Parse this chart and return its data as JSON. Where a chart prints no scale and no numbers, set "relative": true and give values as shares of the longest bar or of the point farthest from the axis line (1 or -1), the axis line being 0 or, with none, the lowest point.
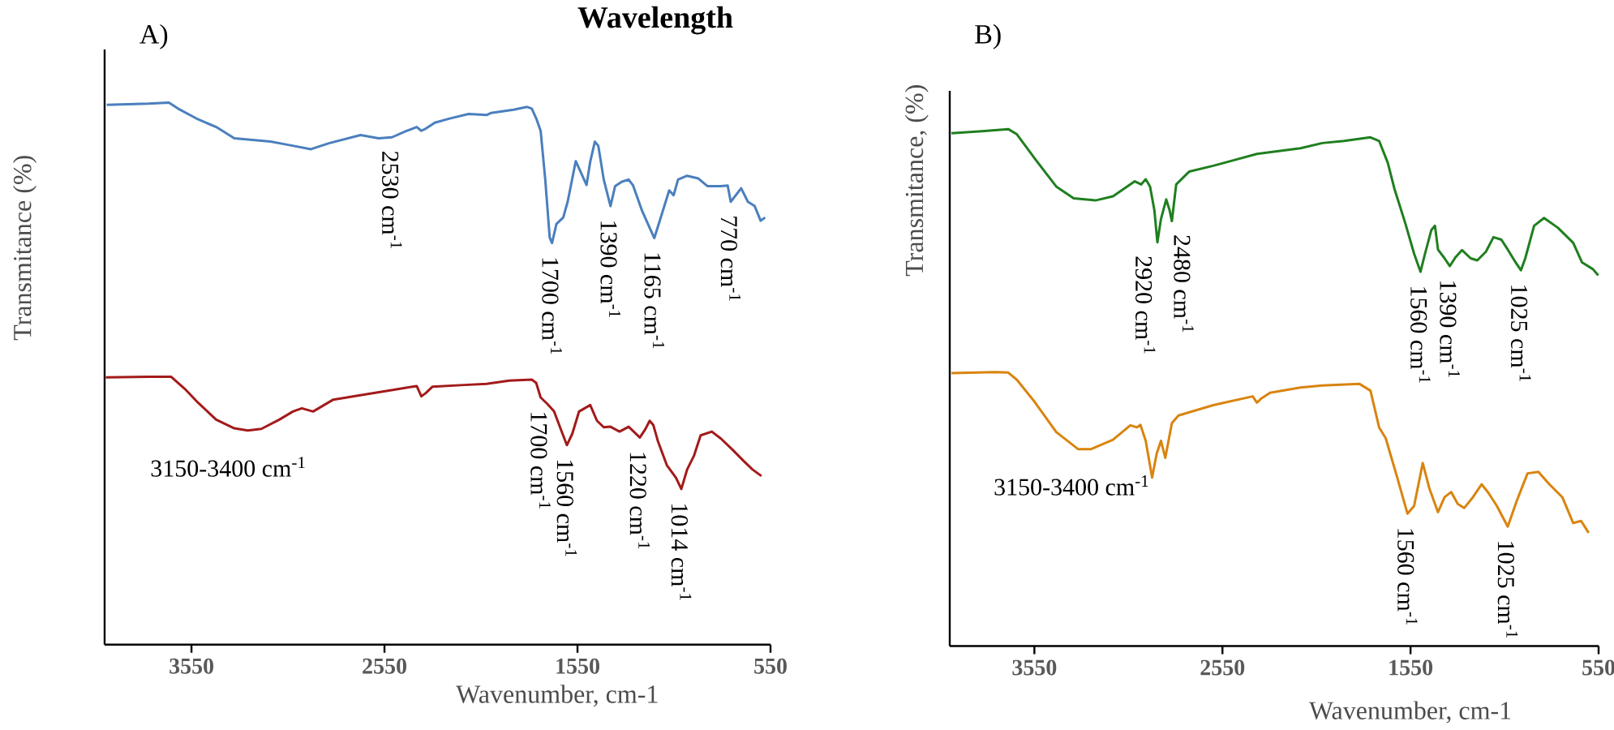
{
  "chart_data": [
    {
      "type": "line",
      "relative": true,
      "title": "A)",
      "xlabel": "Wavenumber, cm-1",
      "ylabel": "Transmitance (%)",
      "xlim": [
        4000,
        550
      ],
      "xticks": [
        3550,
        2550,
        1550,
        550
      ],
      "tick_labels": "x",
      "series": [
        {
          "color": "#4a7fbd",
          "x": [
            3989,
            3772,
            3667,
            3620,
            3515,
            3422,
            3328,
            3141,
            3048,
            2931,
            2838,
            2674,
            2581,
            2511,
            2441,
            2383,
            2359,
            2336,
            2289,
            2208,
            2114,
            2021,
            1997,
            1881,
            1811,
            1787,
            1764,
            1741,
            1717,
            1694,
            1682,
            1659,
            1624,
            1601,
            1559,
            1531,
            1503,
            1484,
            1460,
            1442,
            1414,
            1379,
            1355,
            1320,
            1285,
            1262,
            1215,
            1152,
            1122,
            1075,
            1052,
            1029,
            982,
            924,
            877,
            807,
            772,
            756,
            702,
            667,
            632,
            601,
            578
          ],
          "values": [
            0.996,
            0.998,
            1.0,
            0.989,
            0.969,
            0.955,
            0.934,
            0.928,
            0.922,
            0.914,
            0.925,
            0.94,
            0.934,
            0.936,
            0.947,
            0.955,
            0.948,
            0.952,
            0.963,
            0.971,
            0.979,
            0.977,
            0.981,
            0.987,
            0.992,
            0.989,
            0.971,
            0.948,
            0.858,
            0.751,
            0.741,
            0.776,
            0.788,
            0.817,
            0.892,
            0.87,
            0.848,
            0.891,
            0.928,
            0.92,
            0.858,
            0.809,
            0.846,
            0.854,
            0.858,
            0.847,
            0.8,
            0.75,
            0.784,
            0.838,
            0.829,
            0.858,
            0.865,
            0.86,
            0.846,
            0.846,
            0.847,
            0.817,
            0.842,
            0.817,
            0.809,
            0.782,
            0.788
          ]
        },
        {
          "color": "#a31a1a",
          "x": [
            3994,
            3772,
            3655,
            3585,
            3515,
            3422,
            3328,
            3258,
            3188,
            3095,
            3025,
            2978,
            2920,
            2815,
            2675,
            2488,
            2383,
            2359,
            2336,
            2301,
            2138,
            2021,
            1904,
            1787,
            1764,
            1741,
            1706,
            1671,
            1636,
            1605,
            1577,
            1542,
            1484,
            1449,
            1414,
            1379,
            1332,
            1285,
            1227,
            1199,
            1176,
            1157,
            1134,
            1087,
            1040,
            1012,
            982,
            947,
            912,
            854,
            807,
            748,
            690,
            643,
            597
          ],
          "values": [
            0.493,
            0.494,
            0.494,
            0.472,
            0.446,
            0.415,
            0.399,
            0.395,
            0.398,
            0.415,
            0.43,
            0.436,
            0.43,
            0.452,
            0.46,
            0.471,
            0.477,
            0.458,
            0.464,
            0.476,
            0.479,
            0.481,
            0.487,
            0.489,
            0.483,
            0.456,
            0.444,
            0.43,
            0.397,
            0.368,
            0.389,
            0.43,
            0.442,
            0.413,
            0.401,
            0.402,
            0.393,
            0.402,
            0.382,
            0.397,
            0.413,
            0.405,
            0.376,
            0.331,
            0.308,
            0.287,
            0.323,
            0.348,
            0.386,
            0.393,
            0.38,
            0.36,
            0.339,
            0.323,
            0.311
          ]
        }
      ],
      "annotations": [
        {
          "text": "2530 cm$^{-1}$",
          "x": 2511,
          "y": 0.936
        },
        {
          "text": "1700 cm$^{-1}$",
          "x": 1682,
          "y": 0.741
        },
        {
          "text": "1390 cm$^{-1}$",
          "x": 1379,
          "y": 0.809
        },
        {
          "text": "1165 cm$^{-1}$",
          "x": 1152,
          "y": 0.75
        },
        {
          "text": "770 cm$^{-1}$",
          "x": 756,
          "y": 0.817
        },
        {
          "text": "3150-3400 cm$^{-1}$",
          "x": 3258,
          "y": 0.395
        },
        {
          "text": "1700 cm$^{-1}$",
          "x": 1741,
          "y": 0.456
        },
        {
          "text": "1560 cm$^{-1}$",
          "x": 1605,
          "y": 0.368
        },
        {
          "text": "1220 cm$^{-1}$",
          "x": 1227,
          "y": 0.382
        },
        {
          "text": "1014 cm$^{-1}$",
          "x": 1012,
          "y": 0.287
        },
        "Wavelength"
      ]
    },
    {
      "type": "line",
      "relative": true,
      "title": "B)",
      "xlabel": "Wavenumber, cm-1",
      "ylabel": "Transmitance, (%)",
      "xlim": [
        4000,
        550
      ],
      "xticks": [
        3550,
        2550,
        1550,
        550
      ],
      "tick_labels": "x",
      "series": [
        {
          "color": "#1f7f1f",
          "x": [
            3991,
            3828,
            3689,
            3643,
            3550,
            3434,
            3341,
            3225,
            3132,
            3016,
            2982,
            2958,
            2935,
            2912,
            2896,
            2877,
            2849,
            2831,
            2819,
            2796,
            2726,
            2599,
            2367,
            2135,
            2019,
            1903,
            1763,
            1717,
            1671,
            1636,
            1578,
            1531,
            1497,
            1473,
            1439,
            1420,
            1404,
            1369,
            1341,
            1311,
            1276,
            1230,
            1195,
            1149,
            1109,
            1067,
            1033,
            998,
            963,
            940,
            893,
            840,
            766,
            685,
            638,
            580,
            552
          ],
          "values": [
            0.992,
            0.996,
            1.0,
            0.99,
            0.944,
            0.889,
            0.866,
            0.862,
            0.87,
            0.899,
            0.893,
            0.903,
            0.889,
            0.843,
            0.781,
            0.826,
            0.864,
            0.843,
            0.822,
            0.893,
            0.918,
            0.929,
            0.952,
            0.963,
            0.973,
            0.977,
            0.984,
            0.977,
            0.935,
            0.885,
            0.818,
            0.759,
            0.724,
            0.759,
            0.805,
            0.813,
            0.767,
            0.75,
            0.735,
            0.752,
            0.766,
            0.75,
            0.746,
            0.763,
            0.791,
            0.786,
            0.767,
            0.746,
            0.727,
            0.75,
            0.813,
            0.828,
            0.809,
            0.78,
            0.742,
            0.729,
            0.717
          ]
        },
        {
          "color": "#d9840f",
          "x": [
            3991,
            3759,
            3689,
            3643,
            3550,
            3434,
            3318,
            3248,
            3132,
            3040,
            3005,
            2986,
            2958,
            2924,
            2900,
            2877,
            2854,
            2819,
            2784,
            2599,
            2389,
            2367,
            2343,
            2297,
            2135,
            2019,
            1821,
            1763,
            1717,
            1682,
            1624,
            1566,
            1531,
            1485,
            1450,
            1404,
            1369,
            1334,
            1299,
            1265,
            1218,
            1172,
            1137,
            1091,
            1033,
            986,
            928,
            870,
            812,
            743,
            685,
            643,
            603
          ],
          "values": [
            0.528,
            0.53,
            0.529,
            0.515,
            0.473,
            0.414,
            0.381,
            0.381,
            0.399,
            0.427,
            0.423,
            0.428,
            0.397,
            0.326,
            0.372,
            0.397,
            0.364,
            0.431,
            0.446,
            0.466,
            0.483,
            0.471,
            0.479,
            0.49,
            0.5,
            0.504,
            0.507,
            0.494,
            0.423,
            0.402,
            0.33,
            0.256,
            0.271,
            0.354,
            0.305,
            0.259,
            0.288,
            0.298,
            0.275,
            0.267,
            0.288,
            0.313,
            0.297,
            0.271,
            0.231,
            0.28,
            0.334,
            0.337,
            0.313,
            0.288,
            0.238,
            0.242,
            0.219
          ]
        }
      ],
      "annotations": [
        {
          "text": "2920 cm$^{-1}$",
          "x": 2896,
          "y": 0.781
        },
        {
          "text": "2480 cm$^{-1}$",
          "x": 2819,
          "y": 0.822
        },
        {
          "text": "1560 cm$^{-1}$",
          "x": 1497,
          "y": 0.724
        },
        {
          "text": "1390 cm$^{-1}$",
          "x": 1341,
          "y": 0.735
        },
        {
          "text": "1025 cm$^{-1}$",
          "x": 963,
          "y": 0.727
        },
        {
          "text": "3150-3400 cm$^{-1}$",
          "x": 3248,
          "y": 0.381
        },
        {
          "text": "1560 cm$^{-1}$",
          "x": 1566,
          "y": 0.256
        },
        {
          "text": "1025 cm$^{-1}$",
          "x": 1033,
          "y": 0.231
        }
      ]
    }
  ]
}
